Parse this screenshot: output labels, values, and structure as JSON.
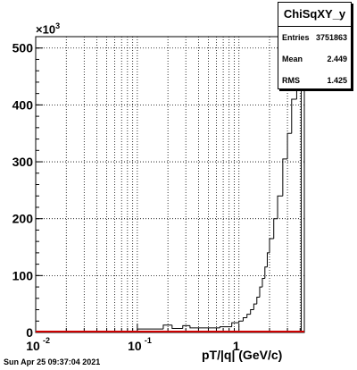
{
  "stats": {
    "title": "ChiSqXY_y",
    "rows": [
      {
        "label": "Entries",
        "value": "3751863"
      },
      {
        "label": "Mean",
        "value": "2.449"
      },
      {
        "label": "RMS",
        "value": "1.425"
      }
    ]
  },
  "timestamp": "Sun Apr 25 09:37:04 2021",
  "y_scale_base": "×10",
  "y_scale_exp": "3",
  "chart_data": {
    "type": "bar",
    "title": "",
    "xlabel": "pT/|q| (GeV/c)",
    "ylabel": "",
    "x_scale": "log",
    "xlim": [
      0.01,
      4.4
    ],
    "ylim": [
      0,
      520
    ],
    "y_units": "×10^3",
    "grid": true,
    "x_major_ticks": [
      0.01,
      0.1,
      1
    ],
    "x_tick_labels": [
      "10",
      "10",
      "1"
    ],
    "x_tick_exps": [
      "-2",
      "-1",
      ""
    ],
    "y_ticks": [
      0,
      100,
      200,
      300,
      400,
      500
    ],
    "y_tick_labels": [
      "0",
      "100",
      "200",
      "300",
      "400",
      "500"
    ],
    "series": [
      {
        "name": "",
        "color": "#000000",
        "bins": [
          {
            "x0": 0.01,
            "x1": 0.1,
            "y": 2
          },
          {
            "x0": 0.1,
            "x1": 0.18,
            "y": 6
          },
          {
            "x0": 0.18,
            "x1": 0.22,
            "y": 13
          },
          {
            "x0": 0.22,
            "x1": 0.28,
            "y": 7
          },
          {
            "x0": 0.28,
            "x1": 0.33,
            "y": 12
          },
          {
            "x0": 0.33,
            "x1": 0.65,
            "y": 8
          },
          {
            "x0": 0.65,
            "x1": 0.85,
            "y": 10
          },
          {
            "x0": 0.85,
            "x1": 1.0,
            "y": 17
          },
          {
            "x0": 1.0,
            "x1": 1.1,
            "y": 20
          },
          {
            "x0": 1.1,
            "x1": 1.2,
            "y": 26
          },
          {
            "x0": 1.2,
            "x1": 1.3,
            "y": 32
          },
          {
            "x0": 1.3,
            "x1": 1.4,
            "y": 40
          },
          {
            "x0": 1.4,
            "x1": 1.5,
            "y": 50
          },
          {
            "x0": 1.5,
            "x1": 1.6,
            "y": 62
          },
          {
            "x0": 1.6,
            "x1": 1.7,
            "y": 80
          },
          {
            "x0": 1.7,
            "x1": 1.8,
            "y": 95
          },
          {
            "x0": 1.8,
            "x1": 1.9,
            "y": 115
          },
          {
            "x0": 1.9,
            "x1": 2.0,
            "y": 140
          },
          {
            "x0": 2.0,
            "x1": 2.2,
            "y": 165
          },
          {
            "x0": 2.2,
            "x1": 2.4,
            "y": 200
          },
          {
            "x0": 2.4,
            "x1": 2.7,
            "y": 240
          },
          {
            "x0": 2.7,
            "x1": 3.0,
            "y": 305
          },
          {
            "x0": 3.0,
            "x1": 3.3,
            "y": 350
          },
          {
            "x0": 3.3,
            "x1": 3.7,
            "y": 410
          },
          {
            "x0": 3.7,
            "x1": 4.1,
            "y": 500
          }
        ]
      }
    ],
    "baseline_color": "#cc0000"
  }
}
